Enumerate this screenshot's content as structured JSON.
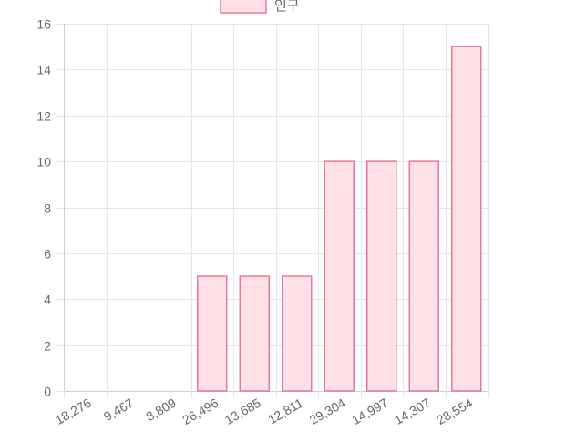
{
  "chart_data": {
    "type": "bar",
    "categories": [
      "18,276",
      "9,467",
      "8,809",
      "26,496",
      "13,685",
      "12,811",
      "29,304",
      "14,997",
      "14,307",
      "28,554"
    ],
    "series": [
      {
        "name": "인구",
        "values": [
          0,
          0,
          0,
          5,
          5,
          5,
          10,
          10,
          10,
          15
        ]
      }
    ],
    "ylim": [
      0,
      16
    ],
    "yticks": [
      "0",
      "2",
      "4",
      "6",
      "8",
      "10",
      "12",
      "14",
      "16"
    ],
    "grid": true,
    "legend": "top",
    "colors": {
      "bar_fill": "#ffe0e6",
      "bar_border": "#e8789a",
      "grid": "#e6e6e6",
      "axis": "#d0d0d0",
      "text": "#666666"
    }
  }
}
